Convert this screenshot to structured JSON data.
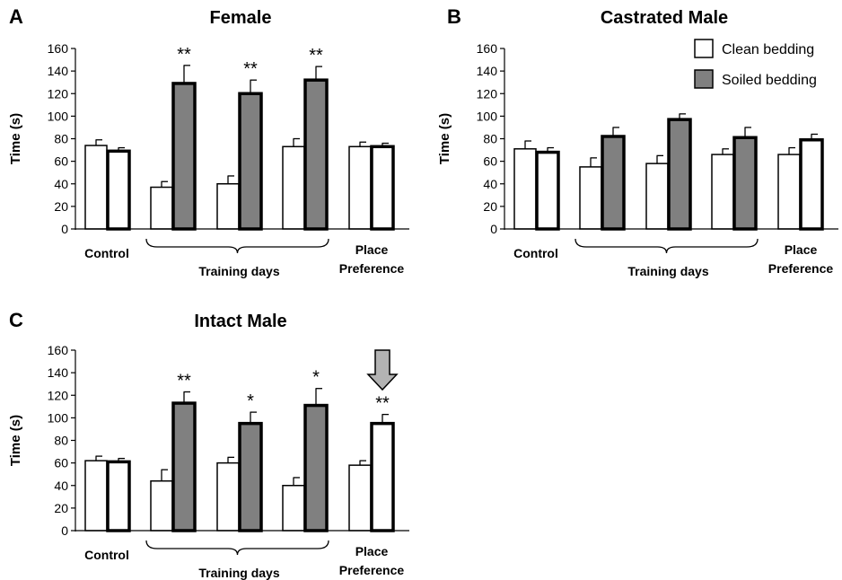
{
  "legend": {
    "clean_label": "Clean bedding",
    "soiled_label": "Soiled bedding",
    "clean_color": "#ffffff",
    "soiled_color": "#808080"
  },
  "labels": {
    "control": "Control",
    "training": "Training days",
    "place_line1": "Place",
    "place_line2": "Preference"
  },
  "chart_data": [
    {
      "type": "bar",
      "panel": "A",
      "title": "Female",
      "ylabel": "Time (s)",
      "ylim": [
        0,
        160
      ],
      "yticks": [
        0,
        20,
        40,
        60,
        80,
        100,
        120,
        140,
        160
      ],
      "groups": [
        "Control",
        "Training day 1",
        "Training day 2",
        "Training day 3",
        "Place Preference"
      ],
      "series": [
        {
          "name": "Clean bedding",
          "values": [
            74,
            37,
            40,
            73,
            73
          ],
          "errors": [
            5,
            5,
            7,
            7,
            4
          ]
        },
        {
          "name": "Soiled bedding",
          "values": [
            69,
            129,
            120,
            132,
            73
          ],
          "errors": [
            3,
            16,
            12,
            12,
            3
          ]
        }
      ],
      "soiled_fill": [
        "white",
        "gray",
        "gray",
        "gray",
        "white"
      ],
      "annotations": [
        "",
        "**",
        "**",
        "**",
        ""
      ]
    },
    {
      "type": "bar",
      "panel": "B",
      "title": "Castrated Male",
      "ylabel": "Time (s)",
      "ylim": [
        0,
        160
      ],
      "yticks": [
        0,
        20,
        40,
        60,
        80,
        100,
        120,
        140,
        160
      ],
      "groups": [
        "Control",
        "Training day 1",
        "Training day 2",
        "Training day 3",
        "Place Preference"
      ],
      "series": [
        {
          "name": "Clean bedding",
          "values": [
            71,
            55,
            58,
            66,
            66
          ],
          "errors": [
            7,
            8,
            7,
            5,
            6
          ]
        },
        {
          "name": "Soiled bedding",
          "values": [
            68,
            82,
            97,
            81,
            79
          ],
          "errors": [
            4,
            8,
            5,
            9,
            5
          ]
        }
      ],
      "soiled_fill": [
        "white",
        "gray",
        "gray",
        "gray",
        "white"
      ],
      "annotations": [
        "",
        "",
        "",
        "",
        ""
      ]
    },
    {
      "type": "bar",
      "panel": "C",
      "title": "Intact Male",
      "ylabel": "Time (s)",
      "ylim": [
        0,
        160
      ],
      "yticks": [
        0,
        20,
        40,
        60,
        80,
        100,
        120,
        140,
        160
      ],
      "groups": [
        "Control",
        "Training day 1",
        "Training day 2",
        "Training day 3",
        "Place Preference"
      ],
      "series": [
        {
          "name": "Clean bedding",
          "values": [
            62,
            44,
            60,
            40,
            58
          ],
          "errors": [
            4,
            10,
            5,
            7,
            4
          ]
        },
        {
          "name": "Soiled bedding",
          "values": [
            61,
            113,
            95,
            111,
            95
          ],
          "errors": [
            3,
            10,
            10,
            15,
            8
          ]
        }
      ],
      "soiled_fill": [
        "white",
        "gray",
        "gray",
        "gray",
        "white"
      ],
      "annotations": [
        "",
        "**",
        "*",
        "*",
        "**"
      ]
    }
  ]
}
